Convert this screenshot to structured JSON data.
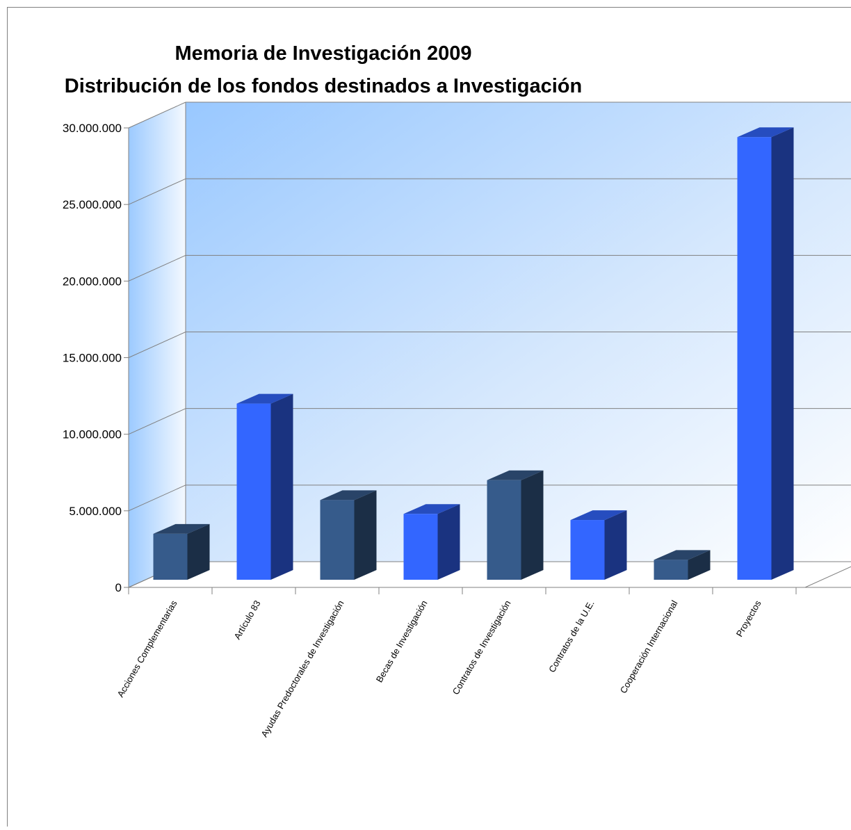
{
  "chart_data": {
    "type": "bar",
    "title": "Memoria de Investigación 2009",
    "subtitle": "Distribución de los fondos destinados a Investigación",
    "categories": [
      "Acciones Complementarias",
      "Artículo 83",
      "Ayudas Predoctorales de Investigación",
      "Becas de Investigación",
      "Contratos de Investigación",
      "Contratos de la U.E.",
      "Cooperación Internacional",
      "Proyectos"
    ],
    "values": [
      3000000,
      11500000,
      5200000,
      4300000,
      6500000,
      3900000,
      1300000,
      28900000
    ],
    "colors": [
      "#365b8b",
      "#3366ff",
      "#365b8b",
      "#3366ff",
      "#365b8b",
      "#3366ff",
      "#365b8b",
      "#3366ff"
    ],
    "ylim": [
      0,
      30000000
    ],
    "yticks": [
      0,
      5000000,
      10000000,
      15000000,
      20000000,
      25000000,
      30000000
    ],
    "ytick_labels": [
      "0",
      "5.000.000",
      "10.000.000",
      "15.000.000",
      "20.000.000",
      "25.000.000",
      "30.000.000"
    ],
    "xlabel": "",
    "ylabel": "",
    "grid": true,
    "legend": "none",
    "style": "3d-column"
  }
}
